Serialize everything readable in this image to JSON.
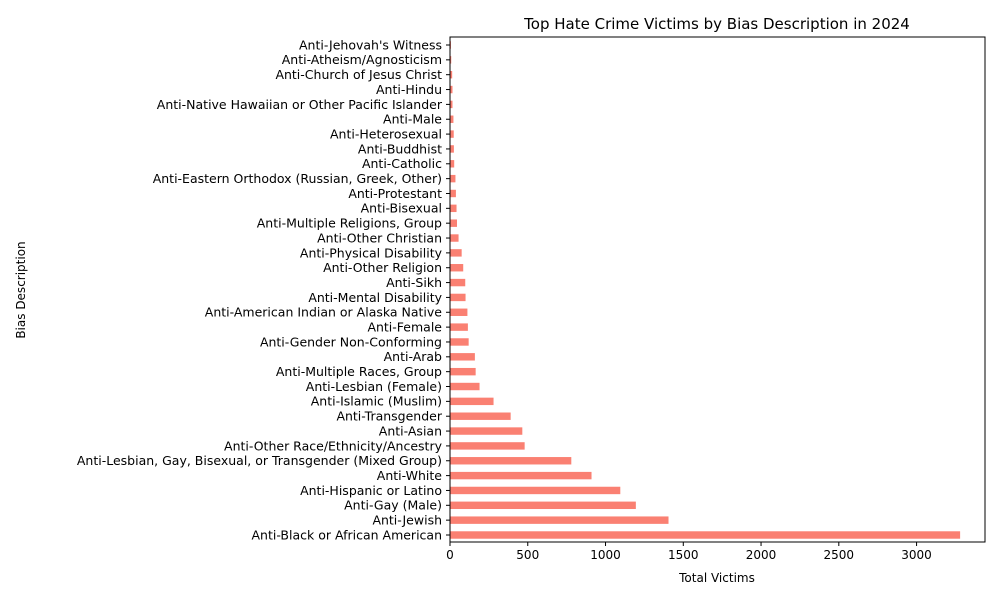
{
  "chart_data": {
    "type": "bar",
    "orientation": "horizontal",
    "title": "Top Hate Crime Victims by Bias Description in 2024",
    "xlabel": "Total Victims",
    "ylabel": "Bias Description",
    "xlim": [
      0,
      3440
    ],
    "xticks": [
      0,
      500,
      1000,
      1500,
      2000,
      2500,
      3000
    ],
    "grid": false,
    "bar_color": "#fa8072",
    "categories": [
      "Anti-Black or African American",
      "Anti-Jewish",
      "Anti-Gay (Male)",
      "Anti-Hispanic or Latino",
      "Anti-White",
      "Anti-Lesbian, Gay, Bisexual, or Transgender (Mixed Group)",
      "Anti-Other Race/Ethnicity/Ancestry",
      "Anti-Asian",
      "Anti-Transgender",
      "Anti-Islamic (Muslim)",
      "Anti-Lesbian (Female)",
      "Anti-Multiple Races, Group",
      "Anti-Arab",
      "Anti-Gender Non-Conforming",
      "Anti-Female",
      "Anti-American Indian or Alaska Native",
      "Anti-Mental Disability",
      "Anti-Sikh",
      "Anti-Other Religion",
      "Anti-Physical Disability",
      "Anti-Other Christian",
      "Anti-Multiple Religions, Group",
      "Anti-Bisexual",
      "Anti-Protestant",
      "Anti-Eastern Orthodox (Russian, Greek, Other)",
      "Anti-Catholic",
      "Anti-Buddhist",
      "Anti-Heterosexual",
      "Anti-Male",
      "Anti-Native Hawaiian or Other Pacific Islander",
      "Anti-Hindu",
      "Anti-Church of Jesus Christ",
      "Anti-Atheism/Agnosticism",
      "Anti-Jehovah's Witness"
    ],
    "values": [
      3280,
      1405,
      1195,
      1095,
      910,
      780,
      480,
      465,
      390,
      280,
      190,
      165,
      160,
      120,
      115,
      112,
      100,
      98,
      85,
      75,
      55,
      45,
      42,
      38,
      35,
      27,
      25,
      24,
      22,
      16,
      16,
      14,
      8,
      6
    ]
  }
}
